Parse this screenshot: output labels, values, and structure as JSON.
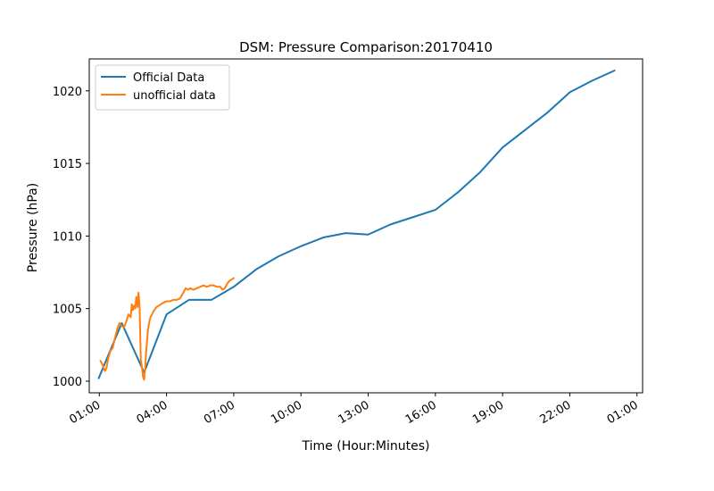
{
  "chart_data": {
    "type": "line",
    "title": "DSM: Pressure Comparison:20170410",
    "xlabel": "Time (Hour:Minutes)",
    "ylabel": "Pressure (hPa)",
    "x_unit": "hours after 00:00 on 2017-04-10",
    "xlim": [
      0.55,
      25.25
    ],
    "ylim": [
      999.2,
      1022.2
    ],
    "xticks": [
      {
        "value": 1,
        "label": "01:00"
      },
      {
        "value": 4,
        "label": "04:00"
      },
      {
        "value": 7,
        "label": "07:00"
      },
      {
        "value": 10,
        "label": "10:00"
      },
      {
        "value": 13,
        "label": "13:00"
      },
      {
        "value": 16,
        "label": "16:00"
      },
      {
        "value": 19,
        "label": "19:00"
      },
      {
        "value": 22,
        "label": "22:00"
      },
      {
        "value": 25,
        "label": "01:00"
      }
    ],
    "yticks": [
      {
        "value": 1000,
        "label": "1000"
      },
      {
        "value": 1005,
        "label": "1005"
      },
      {
        "value": 1010,
        "label": "1010"
      },
      {
        "value": 1015,
        "label": "1015"
      },
      {
        "value": 1020,
        "label": "1020"
      }
    ],
    "legend": {
      "position": "top-left"
    },
    "series": [
      {
        "name": "Official Data",
        "color": "#1f77b4",
        "x": [
          0.97,
          2.0,
          3.0,
          4.0,
          5.0,
          6.0,
          7.0,
          8.0,
          9.0,
          10.0,
          11.0,
          12.0,
          13.0,
          14.0,
          15.0,
          16.0,
          17.0,
          18.0,
          19.0,
          20.0,
          21.0,
          22.0,
          23.0,
          24.0
        ],
        "y": [
          1000.2,
          1004.0,
          1000.6,
          1004.6,
          1005.6,
          1005.6,
          1006.5,
          1007.7,
          1008.6,
          1009.3,
          1009.9,
          1010.2,
          1010.1,
          1010.8,
          1011.3,
          1011.8,
          1013.0,
          1014.4,
          1016.1,
          1017.3,
          1018.5,
          1019.9,
          1020.7,
          1021.4
        ]
      },
      {
        "name": "unofficial data",
        "color": "#ff7f0e",
        "x": [
          1.05,
          1.12,
          1.18,
          1.25,
          1.32,
          1.4,
          1.5,
          1.6,
          1.7,
          1.8,
          1.9,
          2.0,
          2.1,
          2.2,
          2.3,
          2.4,
          2.45,
          2.5,
          2.55,
          2.6,
          2.65,
          2.7,
          2.75,
          2.8,
          2.85,
          2.9,
          2.95,
          3.0,
          3.05,
          3.08,
          3.12,
          3.17,
          3.22,
          3.28,
          3.35,
          3.45,
          3.55,
          3.65,
          3.75,
          3.85,
          4.0,
          4.15,
          4.3,
          4.45,
          4.6,
          4.75,
          4.85,
          4.95,
          5.05,
          5.2,
          5.35,
          5.5,
          5.65,
          5.8,
          5.95,
          6.1,
          6.25,
          6.4,
          6.5,
          6.6,
          6.7,
          6.8,
          6.9,
          7.0
        ],
        "y": [
          1001.4,
          1001.2,
          1001.0,
          1000.7,
          1000.9,
          1001.6,
          1002.1,
          1002.3,
          1003.0,
          1003.6,
          1004.0,
          1003.8,
          1003.7,
          1004.1,
          1004.6,
          1004.4,
          1005.3,
          1004.9,
          1005.2,
          1005.0,
          1005.8,
          1005.1,
          1006.1,
          1005.0,
          1001.5,
          1001.0,
          1000.3,
          1000.1,
          1001.0,
          1001.8,
          1002.6,
          1003.5,
          1004.0,
          1004.4,
          1004.6,
          1004.9,
          1005.1,
          1005.2,
          1005.3,
          1005.4,
          1005.5,
          1005.5,
          1005.6,
          1005.6,
          1005.7,
          1006.1,
          1006.4,
          1006.3,
          1006.4,
          1006.3,
          1006.4,
          1006.5,
          1006.6,
          1006.5,
          1006.6,
          1006.6,
          1006.5,
          1006.5,
          1006.3,
          1006.4,
          1006.7,
          1006.9,
          1007.0,
          1007.1
        ]
      }
    ]
  }
}
